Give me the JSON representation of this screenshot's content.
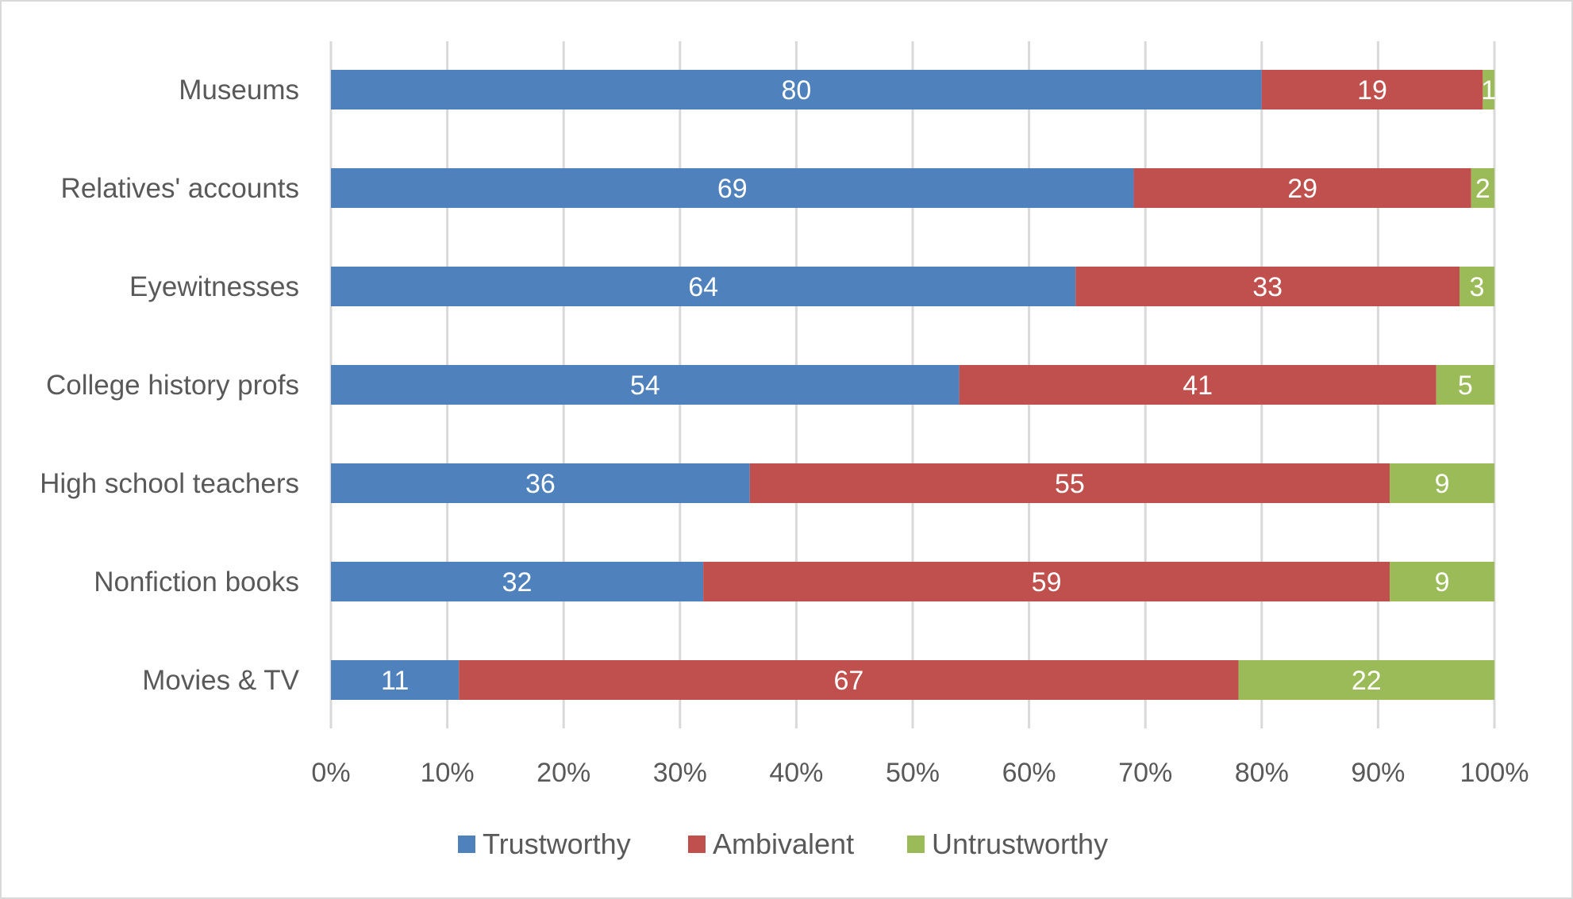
{
  "chart_data": {
    "type": "bar",
    "orientation": "horizontal",
    "stacked": "percent",
    "categories": [
      "Museums",
      "Relatives' accounts",
      "Eyewitnesses",
      "College history profs",
      "High school teachers",
      "Nonfiction books",
      "Movies & TV"
    ],
    "series": [
      {
        "name": "Trustworthy",
        "color": "#4F81BD",
        "values": [
          80,
          69,
          64,
          54,
          36,
          32,
          11
        ]
      },
      {
        "name": "Ambivalent",
        "color": "#C0504D",
        "values": [
          19,
          29,
          33,
          41,
          55,
          59,
          67
        ]
      },
      {
        "name": "Untrustworthy",
        "color": "#9BBB59",
        "values": [
          1,
          2,
          3,
          5,
          9,
          9,
          22
        ]
      }
    ],
    "xlim": [
      0,
      100
    ],
    "xticks": [
      "0%",
      "10%",
      "20%",
      "30%",
      "40%",
      "50%",
      "60%",
      "70%",
      "80%",
      "90%",
      "100%"
    ],
    "grid": "vertical",
    "legend": "bottom",
    "data_labels": true
  }
}
